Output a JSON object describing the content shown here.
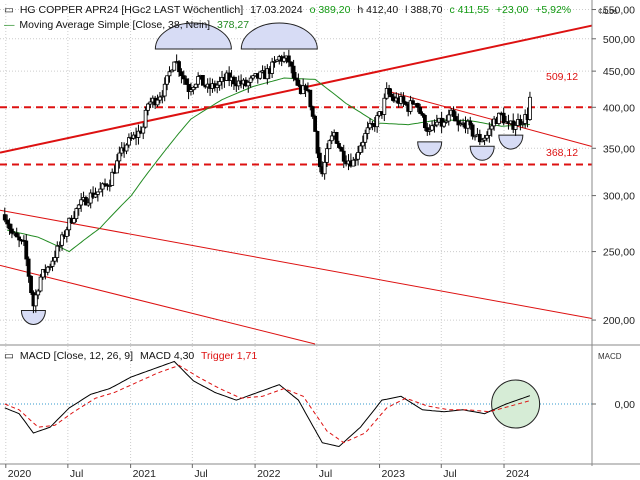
{
  "header": {
    "title": "HG COPPER APR24 [HGc2 LAST Wöchentlich]",
    "date": "17.03.2024",
    "open": "o 389,20",
    "high": "h 412,40",
    "low": "l 388,70",
    "close": "c 411,55",
    "change": "+23,00",
    "change_pct": "+5,92%",
    "unit": "¢/Lbs",
    "ma_label": "Moving Average Simple [Close, 38, Nein]",
    "ma_value": "378,27"
  },
  "macd_header": {
    "label": "MACD [Close, 12, 26, 9]",
    "macd_value": "MACD 4,30",
    "trigger_value": "Trigger 1,71",
    "axis_title": "MACD"
  },
  "annotations": {
    "upper_line_label": "509,12",
    "lower_line_label": "368,12"
  },
  "colors": {
    "candle": "#000000",
    "ma": "#228b22",
    "trend": "#dd1111",
    "support_resistance": "#dd1111",
    "highlight_fill": "#d7dcf5",
    "macd_highlight": "#d6ecd6",
    "positive": "#119911",
    "negative": "#dd1111"
  },
  "chart_data": [
    {
      "type": "candlestick",
      "title": "HG COPPER APR24 [HGc2 LAST Wöchentlich]",
      "yscale": "log",
      "ylim": [
        185,
        560
      ],
      "y_ticks": [
        "550,00",
        "500,00",
        "450,00",
        "400,00",
        "350,00",
        "300,00",
        "250,00",
        "200,00"
      ],
      "y_tick_values": [
        550,
        500,
        450,
        400,
        350,
        300,
        250,
        200
      ],
      "x_ticks": [
        "2020",
        "Jul",
        "2021",
        "Jul",
        "2022",
        "Jul",
        "2023",
        "Jul",
        "2024"
      ],
      "x_tick_dates": [
        "2020-01-01",
        "2020-07-01",
        "2021-01-01",
        "2021-07-01",
        "2022-01-01",
        "2022-07-01",
        "2023-01-01",
        "2023-07-01",
        "2024-01-01"
      ],
      "x_range": [
        "2019-12-15",
        "2024-09-15"
      ],
      "close_anchors": [
        [
          "2019-12-29",
          282
        ],
        [
          "2020-01-19",
          265
        ],
        [
          "2020-02-09",
          258
        ],
        [
          "2020-02-23",
          255
        ],
        [
          "2020-03-15",
          220
        ],
        [
          "2020-03-22",
          210
        ],
        [
          "2020-04-12",
          230
        ],
        [
          "2020-05-10",
          240
        ],
        [
          "2020-06-07",
          255
        ],
        [
          "2020-07-05",
          275
        ],
        [
          "2020-08-02",
          290
        ],
        [
          "2020-09-06",
          300
        ],
        [
          "2020-10-04",
          305
        ],
        [
          "2020-11-01",
          315
        ],
        [
          "2020-11-29",
          340
        ],
        [
          "2020-12-20",
          355
        ],
        [
          "2021-01-17",
          365
        ],
        [
          "2021-02-07",
          375
        ],
        [
          "2021-02-21",
          405
        ],
        [
          "2021-03-14",
          410
        ],
        [
          "2021-04-11",
          425
        ],
        [
          "2021-05-09",
          470
        ],
        [
          "2021-05-23",
          455
        ],
        [
          "2021-06-20",
          425
        ],
        [
          "2021-07-18",
          440
        ],
        [
          "2021-08-15",
          425
        ],
        [
          "2021-09-12",
          430
        ],
        [
          "2021-10-10",
          440
        ],
        [
          "2021-11-07",
          435
        ],
        [
          "2021-12-05",
          430
        ],
        [
          "2022-01-02",
          440
        ],
        [
          "2022-01-30",
          445
        ],
        [
          "2022-02-27",
          460
        ],
        [
          "2022-03-13",
          470
        ],
        [
          "2022-04-10",
          465
        ],
        [
          "2022-04-24",
          440
        ],
        [
          "2022-05-15",
          415
        ],
        [
          "2022-05-29",
          430
        ],
        [
          "2022-06-12",
          405
        ],
        [
          "2022-06-26",
          370
        ],
        [
          "2022-07-10",
          330
        ],
        [
          "2022-07-17",
          322
        ],
        [
          "2022-08-07",
          355
        ],
        [
          "2022-08-21",
          368
        ],
        [
          "2022-09-11",
          345
        ],
        [
          "2022-09-25",
          338
        ],
        [
          "2022-10-16",
          335
        ],
        [
          "2022-11-06",
          355
        ],
        [
          "2022-11-27",
          370
        ],
        [
          "2022-12-18",
          380
        ],
        [
          "2023-01-08",
          395
        ],
        [
          "2023-01-22",
          420
        ],
        [
          "2023-02-12",
          410
        ],
        [
          "2023-03-05",
          408
        ],
        [
          "2023-03-26",
          400
        ],
        [
          "2023-04-16",
          410
        ],
        [
          "2023-05-07",
          385
        ],
        [
          "2023-05-28",
          368
        ],
        [
          "2023-06-18",
          380
        ],
        [
          "2023-07-09",
          378
        ],
        [
          "2023-07-30",
          390
        ],
        [
          "2023-08-20",
          375
        ],
        [
          "2023-09-10",
          380
        ],
        [
          "2023-10-01",
          368
        ],
        [
          "2023-10-22",
          360
        ],
        [
          "2023-11-12",
          365
        ],
        [
          "2023-12-03",
          383
        ],
        [
          "2023-12-24",
          390
        ],
        [
          "2024-01-14",
          375
        ],
        [
          "2024-02-04",
          380
        ],
        [
          "2024-02-25",
          385
        ],
        [
          "2024-03-10",
          389
        ],
        [
          "2024-03-17",
          411.55
        ]
      ],
      "moving_average_anchors": [
        [
          "2020-01-05",
          268
        ],
        [
          "2020-04-05",
          262
        ],
        [
          "2020-07-05",
          250
        ],
        [
          "2020-10-04",
          270
        ],
        [
          "2021-01-03",
          300
        ],
        [
          "2021-03-28",
          340
        ],
        [
          "2021-06-27",
          385
        ],
        [
          "2021-09-26",
          410
        ],
        [
          "2021-12-26",
          428
        ],
        [
          "2022-03-27",
          440
        ],
        [
          "2022-06-26",
          438
        ],
        [
          "2022-09-25",
          405
        ],
        [
          "2022-12-25",
          380
        ],
        [
          "2023-03-26",
          378
        ],
        [
          "2023-06-25",
          384
        ],
        [
          "2023-09-24",
          383
        ],
        [
          "2023-12-24",
          376
        ],
        [
          "2024-03-17",
          378.27
        ]
      ],
      "horizontal_levels": [
        400,
        332
      ],
      "trendlines": [
        {
          "name": "upper channel",
          "points": [
            [
              "2019-12-15",
              345
            ],
            [
              "2024-09-15",
              522
            ]
          ],
          "label": "509,12"
        },
        {
          "name": "parallel 1",
          "points": [
            [
              "2019-12-15",
              286
            ],
            [
              "2024-09-15",
              201
            ]
          ]
        },
        {
          "name": "parallel 2",
          "points": [
            [
              "2019-12-15",
              239
            ],
            [
              "2022-06-26",
              185
            ]
          ]
        },
        {
          "name": "descending",
          "points": [
            [
              "2023-01-22",
              422
            ],
            [
              "2024-09-15",
              352
            ]
          ],
          "label": "368,12"
        }
      ],
      "highlights": [
        {
          "kind": "ellipse-top",
          "center": [
            "2021-07-04",
            490
          ]
        },
        {
          "kind": "ellipse-top",
          "center": [
            "2022-03-13",
            490
          ]
        },
        {
          "kind": "ellipse-bottom",
          "center": [
            "2020-03-22",
            205
          ]
        },
        {
          "kind": "ellipse-bottom",
          "center": [
            "2023-05-28",
            355
          ]
        },
        {
          "kind": "ellipse-bottom",
          "center": [
            "2023-10-29",
            350
          ]
        },
        {
          "kind": "ellipse-bottom",
          "center": [
            "2024-01-21",
            363
          ]
        }
      ]
    },
    {
      "type": "line",
      "title": "MACD [Close, 12, 26, 9]",
      "ylim": [
        -30,
        30
      ],
      "y_ticks": [
        "0,00"
      ],
      "y_tick_values": [
        0
      ],
      "series": [
        {
          "name": "MACD",
          "anchors": [
            [
              "2019-12-29",
              -2
            ],
            [
              "2020-02-09",
              -5
            ],
            [
              "2020-03-22",
              -15
            ],
            [
              "2020-05-10",
              -12
            ],
            [
              "2020-07-05",
              -2
            ],
            [
              "2020-09-06",
              5
            ],
            [
              "2020-11-01",
              8
            ],
            [
              "2021-01-03",
              14
            ],
            [
              "2021-03-07",
              18
            ],
            [
              "2021-05-09",
              22
            ],
            [
              "2021-07-04",
              12
            ],
            [
              "2021-09-05",
              6
            ],
            [
              "2021-11-07",
              2
            ],
            [
              "2022-01-09",
              6
            ],
            [
              "2022-03-13",
              10
            ],
            [
              "2022-05-08",
              2
            ],
            [
              "2022-07-17",
              -20
            ],
            [
              "2022-09-04",
              -22
            ],
            [
              "2022-11-06",
              -12
            ],
            [
              "2023-01-08",
              2
            ],
            [
              "2023-03-05",
              4
            ],
            [
              "2023-05-07",
              -3
            ],
            [
              "2023-07-09",
              -4
            ],
            [
              "2023-09-03",
              -3
            ],
            [
              "2023-11-05",
              -5
            ],
            [
              "2024-01-07",
              0
            ],
            [
              "2024-03-17",
              4.3
            ]
          ]
        },
        {
          "name": "Trigger",
          "anchors": [
            [
              "2019-12-29",
              0
            ],
            [
              "2020-02-09",
              -3
            ],
            [
              "2020-04-05",
              -12
            ],
            [
              "2020-05-24",
              -11
            ],
            [
              "2020-07-19",
              -4
            ],
            [
              "2020-09-20",
              3
            ],
            [
              "2020-11-15",
              6
            ],
            [
              "2021-01-17",
              11
            ],
            [
              "2021-03-21",
              16
            ],
            [
              "2021-05-23",
              20
            ],
            [
              "2021-07-18",
              14
            ],
            [
              "2021-09-19",
              8
            ],
            [
              "2021-11-21",
              3
            ],
            [
              "2022-01-23",
              4
            ],
            [
              "2022-03-27",
              8
            ],
            [
              "2022-05-22",
              4
            ],
            [
              "2022-07-31",
              -14
            ],
            [
              "2022-09-18",
              -20
            ],
            [
              "2022-11-20",
              -15
            ],
            [
              "2023-01-22",
              -2
            ],
            [
              "2023-03-19",
              3
            ],
            [
              "2023-05-21",
              -1
            ],
            [
              "2023-07-23",
              -3
            ],
            [
              "2023-09-17",
              -3
            ],
            [
              "2023-11-19",
              -4
            ],
            [
              "2024-01-21",
              -1
            ],
            [
              "2024-03-17",
              1.71
            ]
          ]
        }
      ],
      "highlights": [
        {
          "kind": "circle",
          "center": [
            "2024-02-04",
            0
          ]
        }
      ]
    }
  ]
}
